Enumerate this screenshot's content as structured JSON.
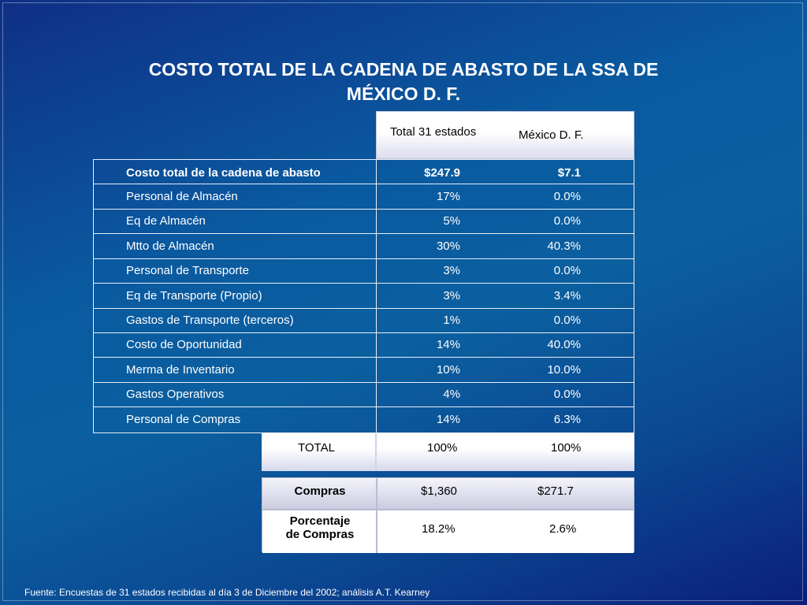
{
  "title": {
    "line1": "COSTO TOTAL DE LA CADENA DE ABASTO DE LA SSA DE",
    "line2": "MÉXICO D. F."
  },
  "header": {
    "col1": "Total 31 estados",
    "col2": "México D. F."
  },
  "rows": [
    {
      "label": "Costo total de la cadena de abasto",
      "total": "$247.9",
      "df": "$7.1"
    },
    {
      "label": "Personal de Almacén",
      "total": "17%",
      "df": "0.0%"
    },
    {
      "label": "Eq de Almacén",
      "total": "5%",
      "df": "0.0%"
    },
    {
      "label": "Mtto de Almacén",
      "total": "30%",
      "df": "40.3%"
    },
    {
      "label": "Personal de Transporte",
      "total": "3%",
      "df": "0.0%"
    },
    {
      "label": "Eq de Transporte (Propio)",
      "total": "3%",
      "df": "3.4%"
    },
    {
      "label": "Gastos de Transporte (terceros)",
      "total": "1%",
      "df": "0.0%"
    },
    {
      "label": "Costo de Oportunidad",
      "total": "14%",
      "df": "40.0%"
    },
    {
      "label": "Merma de Inventario",
      "total": "10%",
      "df": "10.0%"
    },
    {
      "label": "Gastos Operativos",
      "total": "4%",
      "df": "0.0%"
    },
    {
      "label": "Personal de Compras",
      "total": "14%",
      "df": "6.3%"
    }
  ],
  "total_row": {
    "label": "TOTAL",
    "total": "100%",
    "df": "100%"
  },
  "compras": {
    "label": "Compras",
    "total": "$1,360",
    "df": "$271.7"
  },
  "porcentaje": {
    "label_line1": "Porcentaje",
    "label_line2": "de Compras",
    "total": "18.2%",
    "df": "2.6%"
  },
  "footer": "Fuente: Encuestas de 31 estados recibidas al día 3 de Diciembre del 2002; análisis A.T. Kearney"
}
